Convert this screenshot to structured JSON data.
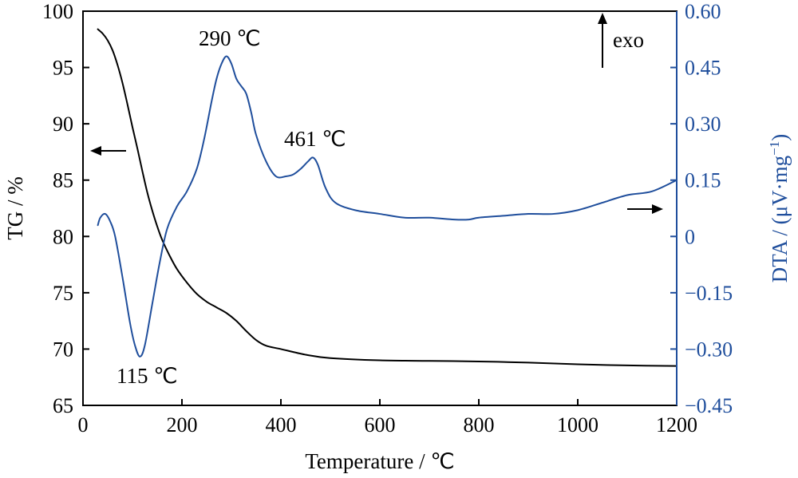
{
  "chart_data": {
    "type": "line",
    "x_axis": {
      "label": "Temperature / ℃",
      "range": [
        0,
        1200
      ],
      "ticks": [
        0,
        200,
        400,
        600,
        800,
        1000,
        1200
      ],
      "tick_labels": [
        "0",
        "200",
        "400",
        "600",
        "800",
        "1000",
        "1200"
      ]
    },
    "y_axis_left": {
      "label": "TG / %",
      "range": [
        65,
        100
      ],
      "ticks": [
        65,
        70,
        75,
        80,
        85,
        90,
        95,
        100
      ],
      "tick_labels": [
        "65",
        "70",
        "75",
        "80",
        "85",
        "90",
        "95",
        "100"
      ],
      "color": "#000000"
    },
    "y_axis_right": {
      "label_main": "DTA / (μV·mg",
      "label_sup": "−1",
      "label_close": ")",
      "range": [
        -0.45,
        0.6
      ],
      "ticks": [
        -0.45,
        -0.3,
        -0.15,
        0,
        0.15,
        0.3,
        0.45,
        0.6
      ],
      "tick_labels": [
        "−0.45",
        "−0.30",
        "−0.15",
        "0",
        "0.15",
        "0.30",
        "0.45",
        "0.60"
      ],
      "color": "#1f4e9c"
    },
    "series": [
      {
        "axis": "left",
        "color": "#000000",
        "x": [
          30,
          40,
          50,
          60,
          70,
          80,
          90,
          100,
          110,
          120,
          130,
          140,
          150,
          160,
          175,
          190,
          210,
          230,
          250,
          270,
          290,
          310,
          330,
          350,
          370,
          400,
          450,
          500,
          600,
          700,
          800,
          900,
          1000,
          1100,
          1200
        ],
        "y": [
          98.4,
          98.0,
          97.4,
          96.5,
          95.2,
          93.6,
          91.7,
          89.7,
          87.8,
          85.8,
          83.9,
          82.3,
          80.9,
          79.7,
          78.3,
          77.1,
          75.9,
          74.9,
          74.2,
          73.7,
          73.2,
          72.5,
          71.6,
          70.8,
          70.3,
          70.0,
          69.5,
          69.2,
          69.0,
          68.95,
          68.9,
          68.8,
          68.65,
          68.55,
          68.5
        ]
      },
      {
        "axis": "right",
        "color": "#1f4e9c",
        "x": [
          30,
          35,
          45,
          55,
          65,
          80,
          95,
          105,
          115,
          125,
          140,
          155,
          170,
          190,
          210,
          230,
          245,
          260,
          270,
          280,
          290,
          300,
          310,
          320,
          330,
          340,
          350,
          370,
          390,
          410,
          425,
          440,
          455,
          465,
          475,
          490,
          510,
          550,
          600,
          650,
          700,
          750,
          780,
          800,
          850,
          900,
          950,
          1000,
          1050,
          1100,
          1150,
          1200
        ],
        "y": [
          0.03,
          0.05,
          0.06,
          0.04,
          0.0,
          -0.11,
          -0.23,
          -0.29,
          -0.32,
          -0.29,
          -0.18,
          -0.07,
          0.02,
          0.08,
          0.12,
          0.18,
          0.26,
          0.36,
          0.42,
          0.46,
          0.48,
          0.46,
          0.42,
          0.4,
          0.38,
          0.33,
          0.27,
          0.2,
          0.16,
          0.16,
          0.165,
          0.18,
          0.2,
          0.21,
          0.19,
          0.13,
          0.09,
          0.07,
          0.06,
          0.05,
          0.05,
          0.045,
          0.045,
          0.05,
          0.055,
          0.06,
          0.06,
          0.07,
          0.09,
          0.11,
          0.12,
          0.15
        ]
      }
    ],
    "annotations": [
      {
        "text": "290 ℃"
      },
      {
        "text": "461 ℃"
      },
      {
        "text": "115 ℃"
      },
      {
        "text": "exo"
      }
    ]
  }
}
